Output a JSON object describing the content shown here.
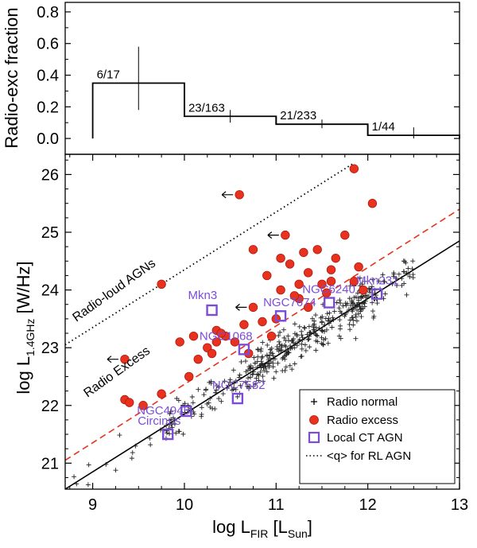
{
  "chart_data": [
    {
      "type": "bar",
      "panel": "top",
      "ylabel": "Radio-exc fraction",
      "xlim": [
        8.7,
        13.0
      ],
      "ylim": [
        -0.1,
        0.86
      ],
      "yticks": [
        0.0,
        0.2,
        0.4,
        0.6,
        0.8
      ],
      "ytick_labels": [
        "0.0",
        "0.2",
        "0.4",
        "0.6",
        "0.8"
      ],
      "bins": [
        {
          "x0": 9.0,
          "x1": 10.0,
          "value": 0.35,
          "label": "6/17",
          "err_x": 9.5,
          "err_low": 0.18,
          "err_high": 0.58
        },
        {
          "x0": 10.0,
          "x1": 11.0,
          "value": 0.14,
          "label": "23/163",
          "err_x": 10.5,
          "err_low": 0.1,
          "err_high": 0.18
        },
        {
          "x0": 11.0,
          "x1": 12.0,
          "value": 0.09,
          "label": "21/233",
          "err_x": 11.5,
          "err_low": 0.065,
          "err_high": 0.12
        },
        {
          "x0": 12.0,
          "x1": 13.0,
          "value": 0.02,
          "label": "1/44",
          "err_x": 12.5,
          "err_low": 0.0,
          "err_high": 0.07
        }
      ]
    },
    {
      "type": "scatter",
      "panel": "bottom",
      "xlabel_main": "log L",
      "xlabel_sub": "FIR",
      "xlabel_bracket": "[L",
      "xlabel_unit_sub": "Sun",
      "xlabel_end": "]",
      "ylabel_main": "log L",
      "ylabel_sub": "1.4GHz",
      "ylabel_unit": "[W/Hz]",
      "xlim": [
        8.7,
        13.0
      ],
      "ylim": [
        20.55,
        26.35
      ],
      "xticks": [
        9,
        10,
        11,
        12,
        13
      ],
      "xtick_labels": [
        "9",
        "10",
        "11",
        "12",
        "13"
      ],
      "yticks": [
        21,
        22,
        23,
        24,
        25,
        26
      ],
      "ytick_labels": [
        "21",
        "22",
        "23",
        "24",
        "25",
        "26"
      ],
      "lines": [
        {
          "name": "Radio normal relation",
          "style": "solid",
          "color": "#000000",
          "x": [
            8.7,
            13.0
          ],
          "y": [
            20.55,
            24.85
          ]
        },
        {
          "name": "Radio excess threshold",
          "style": "dashed",
          "color": "#e8321f",
          "x": [
            8.7,
            13.0
          ],
          "y": [
            21.05,
            25.4
          ]
        },
        {
          "name": "<q> for RL AGN",
          "style": "dotted",
          "color": "#000000",
          "x": [
            8.7,
            11.85
          ],
          "y": [
            23.05,
            26.2
          ]
        }
      ],
      "line_annotations": [
        "Radio-loud AGNs",
        "Radio Excess"
      ],
      "radio_excess": [
        [
          9.35,
          22.1
        ],
        [
          9.55,
          22.0
        ],
        [
          9.75,
          22.2
        ],
        [
          9.35,
          22.8
        ],
        [
          9.75,
          24.1
        ],
        [
          9.95,
          23.1
        ],
        [
          10.05,
          22.5
        ],
        [
          10.1,
          23.2
        ],
        [
          10.15,
          22.8
        ],
        [
          10.25,
          23.0
        ],
        [
          10.3,
          22.9
        ],
        [
          10.35,
          23.3
        ],
        [
          10.45,
          23.2
        ],
        [
          10.55,
          23.1
        ],
        [
          10.65,
          23.4
        ],
        [
          10.7,
          22.9
        ],
        [
          10.35,
          23.1
        ],
        [
          10.4,
          23.25
        ],
        [
          10.6,
          25.65
        ],
        [
          10.75,
          23.7
        ],
        [
          10.85,
          23.45
        ],
        [
          10.95,
          23.2
        ],
        [
          11.0,
          23.5
        ],
        [
          10.9,
          24.25
        ],
        [
          11.05,
          24.55
        ],
        [
          11.1,
          24.95
        ],
        [
          11.15,
          24.45
        ],
        [
          11.05,
          24.0
        ],
        [
          11.25,
          23.85
        ],
        [
          11.3,
          24.65
        ],
        [
          11.35,
          24.3
        ],
        [
          11.45,
          24.7
        ],
        [
          11.5,
          24.1
        ],
        [
          11.55,
          23.95
        ],
        [
          11.35,
          23.7
        ],
        [
          11.6,
          24.35
        ],
        [
          11.65,
          24.55
        ],
        [
          11.75,
          24.95
        ],
        [
          11.85,
          24.15
        ],
        [
          11.9,
          24.4
        ],
        [
          11.95,
          24.0
        ],
        [
          11.2,
          23.9
        ],
        [
          12.05,
          25.5
        ],
        [
          11.85,
          26.1
        ],
        [
          10.75,
          24.7
        ],
        [
          11.25,
          24.1
        ],
        [
          11.6,
          24.15
        ],
        [
          9.4,
          22.05
        ]
      ],
      "radio_excess_arrows": [
        [
          10.6,
          25.65
        ],
        [
          11.1,
          24.95
        ],
        [
          9.35,
          22.8
        ],
        [
          10.75,
          23.7
        ]
      ],
      "local_ct_agn": [
        {
          "name": "Mkn3",
          "x": 10.3,
          "y": 23.65
        },
        {
          "name": "NGC7674",
          "x": 11.05,
          "y": 23.55
        },
        {
          "name": "NGC6240",
          "x": 11.58,
          "y": 23.78
        },
        {
          "name": "Mkn231",
          "x": 12.1,
          "y": 23.93
        },
        {
          "name": "NGC1068",
          "x": 10.65,
          "y": 22.97
        },
        {
          "name": "NGC7582",
          "x": 10.58,
          "y": 22.12
        },
        {
          "name": "NGC4945",
          "x": 10.02,
          "y": 21.9
        },
        {
          "name": "Circinus",
          "x": 9.82,
          "y": 21.5
        }
      ],
      "legend": {
        "position": "bottom-right",
        "entries": [
          "Radio normal",
          "Radio excess",
          "Local CT AGN",
          "<q> for RL AGN"
        ]
      },
      "colors": {
        "radio_excess": "#e8321f",
        "ct_agn": "#7b4dd6",
        "line": "#000000"
      }
    }
  ]
}
